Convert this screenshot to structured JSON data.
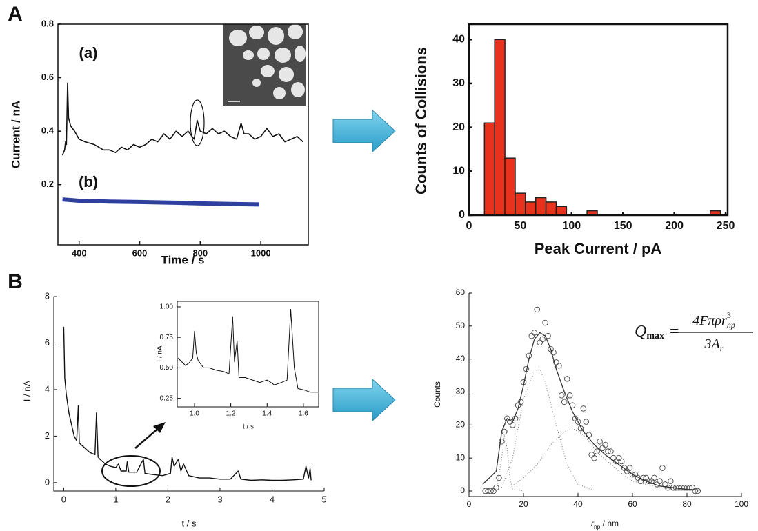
{
  "panel_labels": [
    "A",
    "B"
  ],
  "chart_data": [
    {
      "type": "line",
      "xlabel": "Time / s",
      "ylabel": "Current / nA",
      "xlim": [
        330,
        1157
      ],
      "ylim": [
        -0.025,
        0.8
      ],
      "xticks": [
        400,
        600,
        800,
        1000
      ],
      "yticks": [
        0.2,
        0.4,
        0.6,
        0.8
      ],
      "series": [
        {
          "name": "(a)",
          "color": "#111111",
          "x": [
            345,
            352,
            355,
            358,
            362,
            365,
            372,
            385,
            400,
            420,
            450,
            480,
            500,
            520,
            540,
            560,
            580,
            600,
            620,
            640,
            660,
            680,
            700,
            720,
            740,
            760,
            780,
            790,
            800,
            820,
            840,
            860,
            880,
            900,
            920,
            935,
            945,
            960,
            980,
            1000,
            1020,
            1040,
            1060,
            1080,
            1100,
            1120,
            1140
          ],
          "values": [
            0.31,
            0.33,
            0.36,
            0.35,
            0.58,
            0.45,
            0.42,
            0.4,
            0.37,
            0.36,
            0.35,
            0.33,
            0.33,
            0.32,
            0.34,
            0.33,
            0.35,
            0.34,
            0.35,
            0.37,
            0.36,
            0.39,
            0.37,
            0.4,
            0.38,
            0.4,
            0.37,
            0.44,
            0.4,
            0.39,
            0.41,
            0.39,
            0.4,
            0.38,
            0.37,
            0.43,
            0.39,
            0.39,
            0.37,
            0.38,
            0.41,
            0.38,
            0.39,
            0.36,
            0.37,
            0.38,
            0.36
          ]
        },
        {
          "name": "(b)",
          "color": "#2e3f9e",
          "x": [
            345,
            400,
            500,
            600,
            700,
            800,
            900,
            995
          ],
          "values": [
            0.145,
            0.14,
            0.137,
            0.135,
            0.133,
            0.13,
            0.128,
            0.126
          ]
        }
      ]
    },
    {
      "type": "histogram",
      "xlabel": "Peak Current / pA",
      "ylabel": "Counts of Collisions",
      "color": "#e8321e",
      "xlim": [
        0,
        252
      ],
      "ylim": [
        0,
        43.5
      ],
      "xticks": [
        0,
        50,
        100,
        150,
        200,
        250
      ],
      "yticks": [
        0,
        10,
        20,
        30,
        40
      ],
      "bins": [
        15,
        25,
        35,
        45,
        55,
        65,
        75,
        85,
        95,
        105,
        115,
        125,
        135,
        145,
        155,
        165,
        175,
        185,
        195,
        205,
        215,
        225,
        235,
        245
      ],
      "values": [
        21,
        40,
        13,
        5,
        3,
        4,
        3,
        2,
        0,
        0,
        1,
        0,
        0,
        0,
        0,
        0,
        0,
        0,
        0,
        0,
        0,
        0,
        1
      ]
    },
    {
      "type": "line",
      "xlabel": "t / s",
      "ylabel": "I / nA",
      "xlim": [
        -0.19,
        5
      ],
      "ylim": [
        -0.36,
        8
      ],
      "xticks": [
        0,
        1,
        2,
        3,
        4,
        5
      ],
      "yticks": [
        0,
        2,
        4,
        6,
        8
      ],
      "series": [
        {
          "color": "#111111",
          "x": [
            0,
            0.02,
            0.05,
            0.1,
            0.15,
            0.2,
            0.25,
            0.28,
            0.3,
            0.4,
            0.5,
            0.6,
            0.63,
            0.66,
            0.7,
            0.8,
            0.9,
            1.0,
            1.05,
            1.1,
            1.2,
            1.22,
            1.25,
            1.4,
            1.53,
            1.56,
            1.7,
            1.9,
            2.05,
            2.08,
            2.12,
            2.2,
            2.25,
            2.3,
            2.4,
            2.6,
            2.8,
            3.0,
            3.2,
            3.35,
            3.4,
            3.6,
            3.8,
            4.0,
            4.2,
            4.4,
            4.6,
            4.65,
            4.7,
            4.73,
            4.75
          ],
          "values": [
            6.7,
            4.5,
            3.8,
            3.0,
            2.5,
            2.0,
            1.8,
            3.3,
            1.7,
            1.5,
            1.3,
            1.2,
            3.0,
            1.1,
            1.0,
            0.8,
            0.7,
            0.65,
            0.8,
            0.5,
            0.5,
            0.9,
            0.45,
            0.45,
            1.0,
            0.4,
            0.35,
            0.3,
            0.4,
            1.1,
            0.7,
            1.0,
            0.5,
            0.8,
            0.3,
            0.2,
            0.2,
            0.15,
            0.15,
            0.5,
            0.15,
            0.1,
            0.12,
            0.1,
            0.1,
            0.12,
            0.15,
            0.7,
            0.2,
            0.6,
            0.1
          ]
        }
      ]
    },
    {
      "type": "line",
      "xlabel": "t / s",
      "ylabel": "I / nA",
      "xlim": [
        0.905,
        1.684
      ],
      "ylim": [
        0.18,
        1.045
      ],
      "xticks": [
        {
          "value": 1.0,
          "label": "1.0"
        },
        1.2,
        1.4,
        1.6
      ],
      "yticks": [
        0.25,
        {
          "value": 0.5,
          "label": "0.50"
        },
        0.75,
        {
          "value": 1.0,
          "label": "1.00"
        }
      ],
      "series": [
        {
          "color": "#111111",
          "x": [
            0.91,
            0.93,
            0.95,
            0.97,
            0.99,
            1.0,
            1.01,
            1.02,
            1.05,
            1.08,
            1.12,
            1.16,
            1.19,
            1.21,
            1.22,
            1.235,
            1.245,
            1.28,
            1.32,
            1.36,
            1.4,
            1.44,
            1.48,
            1.51,
            1.53,
            1.55,
            1.57,
            1.6,
            1.64,
            1.68
          ],
          "values": [
            0.58,
            0.55,
            0.52,
            0.54,
            0.58,
            0.8,
            0.62,
            0.56,
            0.5,
            0.5,
            0.48,
            0.47,
            0.45,
            0.92,
            0.55,
            0.72,
            0.42,
            0.42,
            0.4,
            0.38,
            0.4,
            0.36,
            0.38,
            0.4,
            0.98,
            0.5,
            0.33,
            0.32,
            0.3,
            0.3
          ]
        }
      ]
    },
    {
      "type": "scatter",
      "xlabel": [
        "r",
        "np",
        " / nm"
      ],
      "ylabel": "Counts",
      "xlim": [
        0,
        100
      ],
      "ylim": [
        -1.67,
        60
      ],
      "xticks": [
        0,
        20,
        40,
        60,
        80,
        100
      ],
      "yticks": [
        0,
        10,
        20,
        30,
        40,
        50,
        60
      ],
      "formula": {
        "lhs": "Q",
        "lhs_sub": "max",
        "eq": "=",
        "num": "4Fπρr",
        "num_sup": "3",
        "num_sub": "np",
        "den": "3A",
        "den_sub": "r"
      },
      "series": [
        {
          "style": "markers",
          "color": "#555555",
          "x": [
            6,
            7,
            8,
            9,
            10,
            11,
            12,
            13,
            14,
            15,
            16,
            17,
            18,
            19,
            20,
            21,
            22,
            23,
            24,
            25,
            26,
            27,
            28,
            29,
            30,
            31,
            32,
            33,
            34,
            35,
            36,
            37,
            38,
            39,
            40,
            41,
            42,
            43,
            44,
            45,
            46,
            47,
            48,
            49,
            50,
            51,
            52,
            53,
            54,
            55,
            56,
            57,
            58,
            59,
            60,
            61,
            62,
            63,
            64,
            65,
            66,
            67,
            68,
            69,
            70,
            71,
            72,
            73,
            74,
            75,
            76,
            77,
            78,
            79,
            80,
            81,
            82,
            83,
            84
          ],
          "values": [
            0,
            0,
            0,
            0,
            1,
            4,
            15,
            18,
            22,
            21,
            20,
            22,
            26,
            27,
            33,
            37,
            41,
            47,
            48,
            55,
            45,
            46,
            51,
            47,
            43,
            42,
            39,
            38,
            29,
            27,
            34,
            29,
            26,
            22,
            21,
            19,
            25,
            21,
            17,
            11,
            10,
            12,
            15,
            13,
            14,
            12,
            12,
            10,
            9,
            10,
            9,
            7,
            6,
            7,
            5,
            5,
            4,
            3,
            4,
            4,
            3,
            3,
            4,
            2,
            3,
            7,
            2,
            1,
            3,
            1,
            1,
            1,
            1,
            1,
            1,
            1,
            1,
            0,
            0
          ]
        },
        {
          "style": "line",
          "color": "#333333",
          "x": [
            5,
            10,
            12,
            14,
            16,
            18,
            20,
            22,
            24,
            26,
            28,
            30,
            32,
            35,
            38,
            42,
            46,
            50,
            55,
            60,
            65,
            70,
            75,
            80,
            85
          ],
          "values": [
            2,
            6,
            18,
            22,
            21,
            25,
            32,
            40,
            46,
            48,
            47,
            43,
            37,
            30,
            24,
            18,
            14,
            11,
            8,
            5,
            3,
            1.5,
            1,
            0.5,
            0.3
          ]
        },
        {
          "style": "dotted",
          "color": "#777777",
          "x": [
            10,
            12,
            13,
            14,
            15,
            16,
            20
          ],
          "values": [
            0,
            10,
            17,
            13,
            4,
            0.5,
            0
          ]
        },
        {
          "style": "dotted",
          "color": "#777777",
          "x": [
            12,
            16,
            20,
            24,
            26,
            28,
            32,
            36,
            40,
            45
          ],
          "values": [
            1,
            10,
            28,
            36,
            37,
            33,
            20,
            8,
            2,
            0.5
          ]
        },
        {
          "style": "dotted",
          "color": "#777777",
          "x": [
            15,
            20,
            25,
            30,
            35,
            38,
            42,
            48,
            55,
            60,
            70,
            80
          ],
          "values": [
            1,
            4,
            8,
            14,
            18,
            19,
            17,
            11,
            6,
            3,
            1,
            0.3
          ]
        }
      ]
    }
  ]
}
